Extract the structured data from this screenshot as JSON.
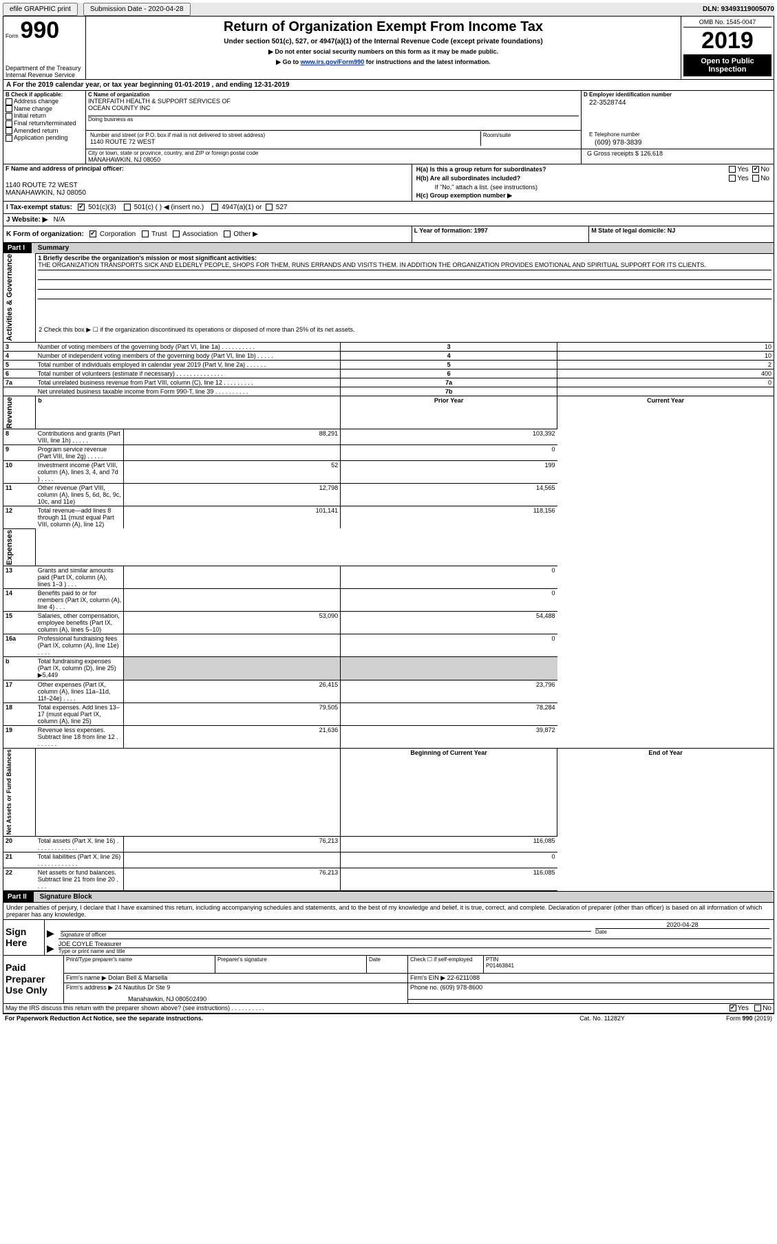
{
  "topbar": {
    "efile": "efile GRAPHIC print",
    "submission_label": "Submission Date - 2020-04-28",
    "dln_label": "DLN: 93493119005070"
  },
  "header": {
    "form_word": "Form",
    "form_num": "990",
    "title": "Return of Organization Exempt From Income Tax",
    "sub1": "Under section 501(c), 527, or 4947(a)(1) of the Internal Revenue Code (except private foundations)",
    "sub2": "▶ Do not enter social security numbers on this form as it may be made public.",
    "sub3_prefix": "▶ Go to ",
    "sub3_link": "www.irs.gov/Form990",
    "sub3_suffix": " for instructions and the latest information.",
    "dept": "Department of the Treasury",
    "irs": "Internal Revenue Service",
    "omb": "OMB No. 1545-0047",
    "year": "2019",
    "open": "Open to Public Inspection"
  },
  "periodA": {
    "text": "A For the 2019 calendar year, or tax year beginning 01-01-2019   , and ending 12-31-2019"
  },
  "blockB": {
    "label": "B Check if applicable:",
    "addr": "Address change",
    "name": "Name change",
    "init": "Initial return",
    "final": "Final return/terminated",
    "amend": "Amended return",
    "app": "Application pending"
  },
  "blockC": {
    "label": "C Name of organization",
    "org1": "INTERFAITH HEALTH & SUPPORT SERVICES OF",
    "org2": "OCEAN COUNTY INC",
    "dba_label": "Doing business as",
    "addr_label": "Number and street (or P.O. box if mail is not delivered to street address)",
    "room": "Room/suite",
    "addr": "1140 ROUTE 72 WEST",
    "city_label": "City or town, state or province, country, and ZIP or foreign postal code",
    "city": "MANAHAWKIN, NJ  08050"
  },
  "blockD": {
    "label": "D Employer identification number",
    "val": "22-3528744"
  },
  "blockE": {
    "label": "E Telephone number",
    "val": "(609) 978-3839"
  },
  "blockG": {
    "label": "G Gross receipts $ 126,618"
  },
  "blockF": {
    "label": "F  Name and address of principal officer:",
    "addr1": "1140 ROUTE 72 WEST",
    "addr2": "MANAHAWKIN, NJ  08050"
  },
  "blockH": {
    "ha": "H(a)  Is this a group return for subordinates?",
    "hb": "H(b)  Are all subordinates included?",
    "hb_note": "If \"No,\" attach a list. (see instructions)",
    "hc": "H(c)  Group exemption number ▶",
    "yes": "Yes",
    "no": "No"
  },
  "blockI": {
    "label": "I  Tax-exempt status:",
    "c3": "501(c)(3)",
    "c": "501(c) (  ) ◀ (insert no.)",
    "a": "4947(a)(1) or",
    "s527": "527"
  },
  "blockJ": {
    "label": "J  Website: ▶",
    "val": "N/A"
  },
  "blockK": {
    "label": "K Form of organization:",
    "corp": "Corporation",
    "trust": "Trust",
    "assoc": "Association",
    "other": "Other ▶"
  },
  "blockL": {
    "label": "L Year of formation: 1997"
  },
  "blockM": {
    "label": "M State of legal domicile: NJ"
  },
  "part1": {
    "header": "Part I",
    "title": "Summary",
    "side_ag": "Activities & Governance",
    "side_rev": "Revenue",
    "side_exp": "Expenses",
    "side_na": "Net Assets or Fund Balances",
    "q1": "1  Briefly describe the organization's mission or most significant activities:",
    "q1_ans": "THE ORGANIZATION TRANSPORTS SICK AND ELDERLY PEOPLE, SHOPS FOR THEM, RUNS ERRANDS AND VISITS THEM. IN ADDITION THE ORGANIZATION PROVIDES EMOTIONAL AND SPIRITUAL SUPPORT FOR ITS CLIENTS.",
    "q2": "2   Check this box ▶ ☐  if the organization discontinued its operations or disposed of more than 25% of its net assets.",
    "rows_ag": [
      {
        "n": "3",
        "t": "Number of voting members of the governing body (Part VI, line 1a)  .   .   .   .   .   .   .   .   .   .",
        "box": "3",
        "v": "10"
      },
      {
        "n": "4",
        "t": "Number of independent voting members of the governing body (Part VI, line 1b)  .   .   .   .   .",
        "box": "4",
        "v": "10"
      },
      {
        "n": "5",
        "t": "Total number of individuals employed in calendar year 2019 (Part V, line 2a)  .   .   .   .   .   .",
        "box": "5",
        "v": "2"
      },
      {
        "n": "6",
        "t": "Total number of volunteers (estimate if necessary)   .   .   .   .   .   .   .   .   .   .   .   .   .   .",
        "box": "6",
        "v": "400"
      },
      {
        "n": "7a",
        "t": "Total unrelated business revenue from Part VIII, column (C), line 12  .   .   .   .   .   .   .   .   .",
        "box": "7a",
        "v": "0"
      },
      {
        "n": "",
        "t": "Net unrelated business taxable income from Form 990-T, line 39   .   .   .   .   .   .   .   .   .   .",
        "box": "7b",
        "v": ""
      }
    ],
    "hdr_prior": "Prior Year",
    "hdr_curr": "Current Year",
    "rows_rev": [
      {
        "n": "8",
        "t": "Contributions and grants (Part VIII, line 1h)   .    .    .    .    .",
        "p": "88,291",
        "c": "103,392"
      },
      {
        "n": "9",
        "t": "Program service revenue (Part VIII, line 2g)    .    .    .    .    .",
        "p": "",
        "c": "0"
      },
      {
        "n": "10",
        "t": "Investment income (Part VIII, column (A), lines 3, 4, and 7d )    .    .    .    .",
        "p": "52",
        "c": "199"
      },
      {
        "n": "11",
        "t": "Other revenue (Part VIII, column (A), lines 5, 6d, 8c, 9c, 10c, and 11e)",
        "p": "12,798",
        "c": "14,565"
      },
      {
        "n": "12",
        "t": "Total revenue—add lines 8 through 11 (must equal Part VIII, column (A), line 12)",
        "p": "101,141",
        "c": "118,156"
      }
    ],
    "rows_exp": [
      {
        "n": "13",
        "t": "Grants and similar amounts paid (Part IX, column (A), lines 1–3 )  .    .    .",
        "p": "",
        "c": "0"
      },
      {
        "n": "14",
        "t": "Benefits paid to or for members (Part IX, column (A), line 4)  .    .    .",
        "p": "",
        "c": "0"
      },
      {
        "n": "15",
        "t": "Salaries, other compensation, employee benefits (Part IX, column (A), lines 5–10)",
        "p": "53,090",
        "c": "54,488"
      },
      {
        "n": "16a",
        "t": "Professional fundraising fees (Part IX, column (A), line 11e)   .    .    .    .",
        "p": "",
        "c": "0"
      },
      {
        "n": "b",
        "t": "Total fundraising expenses (Part IX, column (D), line 25) ▶5,449",
        "p": "GRAY",
        "c": "GRAY"
      },
      {
        "n": "17",
        "t": "Other expenses (Part IX, column (A), lines 11a–11d, 11f–24e)   .    .    .    .",
        "p": "26,415",
        "c": "23,796"
      },
      {
        "n": "18",
        "t": "Total expenses. Add lines 13–17 (must equal Part IX, column (A), line 25)",
        "p": "79,505",
        "c": "78,284"
      },
      {
        "n": "19",
        "t": "Revenue less expenses. Subtract line 18 from line 12 .    .    .    .    .    .    .",
        "p": "21,636",
        "c": "39,872"
      }
    ],
    "hdr_boy": "Beginning of Current Year",
    "hdr_eoy": "End of Year",
    "rows_na": [
      {
        "n": "20",
        "t": "Total assets (Part X, line 16)  .    .    .    .    .    .    .    .    .    .    .    .    .",
        "p": "76,213",
        "c": "116,085"
      },
      {
        "n": "21",
        "t": "Total liabilities (Part X, line 26) .    .    .    .    .    .    .    .    .    .    .    .",
        "p": "",
        "c": "0"
      },
      {
        "n": "22",
        "t": "Net assets or fund balances. Subtract line 21 from line 20   .    .    .    .",
        "p": "76,213",
        "c": "116,085"
      }
    ]
  },
  "part2": {
    "header": "Part II",
    "title": "Signature Block",
    "decl": "Under penalties of perjury, I declare that I have examined this return, including accompanying schedules and statements, and to the best of my knowledge and belief, it is true, correct, and complete. Declaration of preparer (other than officer) is based on all information of which preparer has any knowledge.",
    "sign_here": "Sign Here",
    "sig_officer": "Signature of officer",
    "sig_date": "Date",
    "sig_date_val": "2020-04-28",
    "sig_name": "JOE COYLE  Treasurer",
    "sig_type": "Type or print name and title",
    "paid": "Paid Preparer Use Only",
    "p_name": "Print/Type preparer's name",
    "p_sig": "Preparer's signature",
    "p_date": "Date",
    "p_check": "Check ☐ if self-employed",
    "p_ptin": "PTIN",
    "p_ptin_val": "P01463841",
    "firm_name_l": "Firm's name      ▶",
    "firm_name": "Dolan Bell & Marsella",
    "firm_ein_l": "Firm's EIN ▶",
    "firm_ein": "22-6211088",
    "firm_addr_l": "Firm's address  ▶",
    "firm_addr1": "24 Nautilus Dr Ste 9",
    "firm_addr2": "Manahawkin, NJ  080502490",
    "firm_phone_l": "Phone no.",
    "firm_phone": "(609) 978-8600",
    "discuss": "May the IRS discuss this return with the preparer shown above? (see instructions)   .    .    .    .    .    .    .    .    .    .",
    "yes": "Yes",
    "no": "No"
  },
  "footer": {
    "pra": "For Paperwork Reduction Act Notice, see the separate instructions.",
    "cat": "Cat. No. 11282Y",
    "form": "Form 990 (2019)"
  }
}
